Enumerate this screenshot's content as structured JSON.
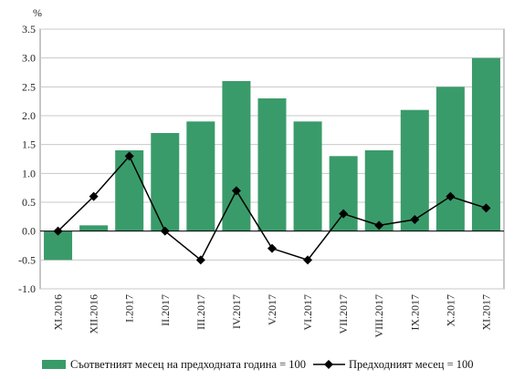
{
  "chart_data": {
    "type": "bar",
    "unit": "%",
    "categories": [
      "XI.2016",
      "XII.2016",
      "I.2017",
      "II.2017",
      "III.2017",
      "IV.2017",
      "V.2017",
      "VI.2017",
      "VII.2017",
      "VIII.2017",
      "IX.2017",
      "X.2017",
      "XI.2017"
    ],
    "ylim": [
      -1.0,
      3.5
    ],
    "yticks": [
      "3.5",
      "3.0",
      "2.5",
      "2.0",
      "1.5",
      "1.0",
      "0.5",
      "0.0",
      "-0.5",
      "-1.0"
    ],
    "grid": true,
    "legend_position": "bottom",
    "series": [
      {
        "name": "Съответният месец на предходната година = 100",
        "type": "bar",
        "color": "#3a9b6a",
        "values": [
          -0.5,
          0.1,
          1.4,
          1.7,
          1.9,
          2.6,
          2.3,
          1.9,
          1.3,
          1.4,
          2.1,
          2.5,
          3.0
        ]
      },
      {
        "name": "Предходният месец = 100",
        "type": "line",
        "color": "#000000",
        "marker": "diamond",
        "values": [
          0.0,
          0.6,
          1.3,
          0.0,
          -0.5,
          0.7,
          -0.3,
          -0.5,
          0.3,
          0.1,
          0.2,
          0.6,
          0.4
        ]
      }
    ]
  }
}
